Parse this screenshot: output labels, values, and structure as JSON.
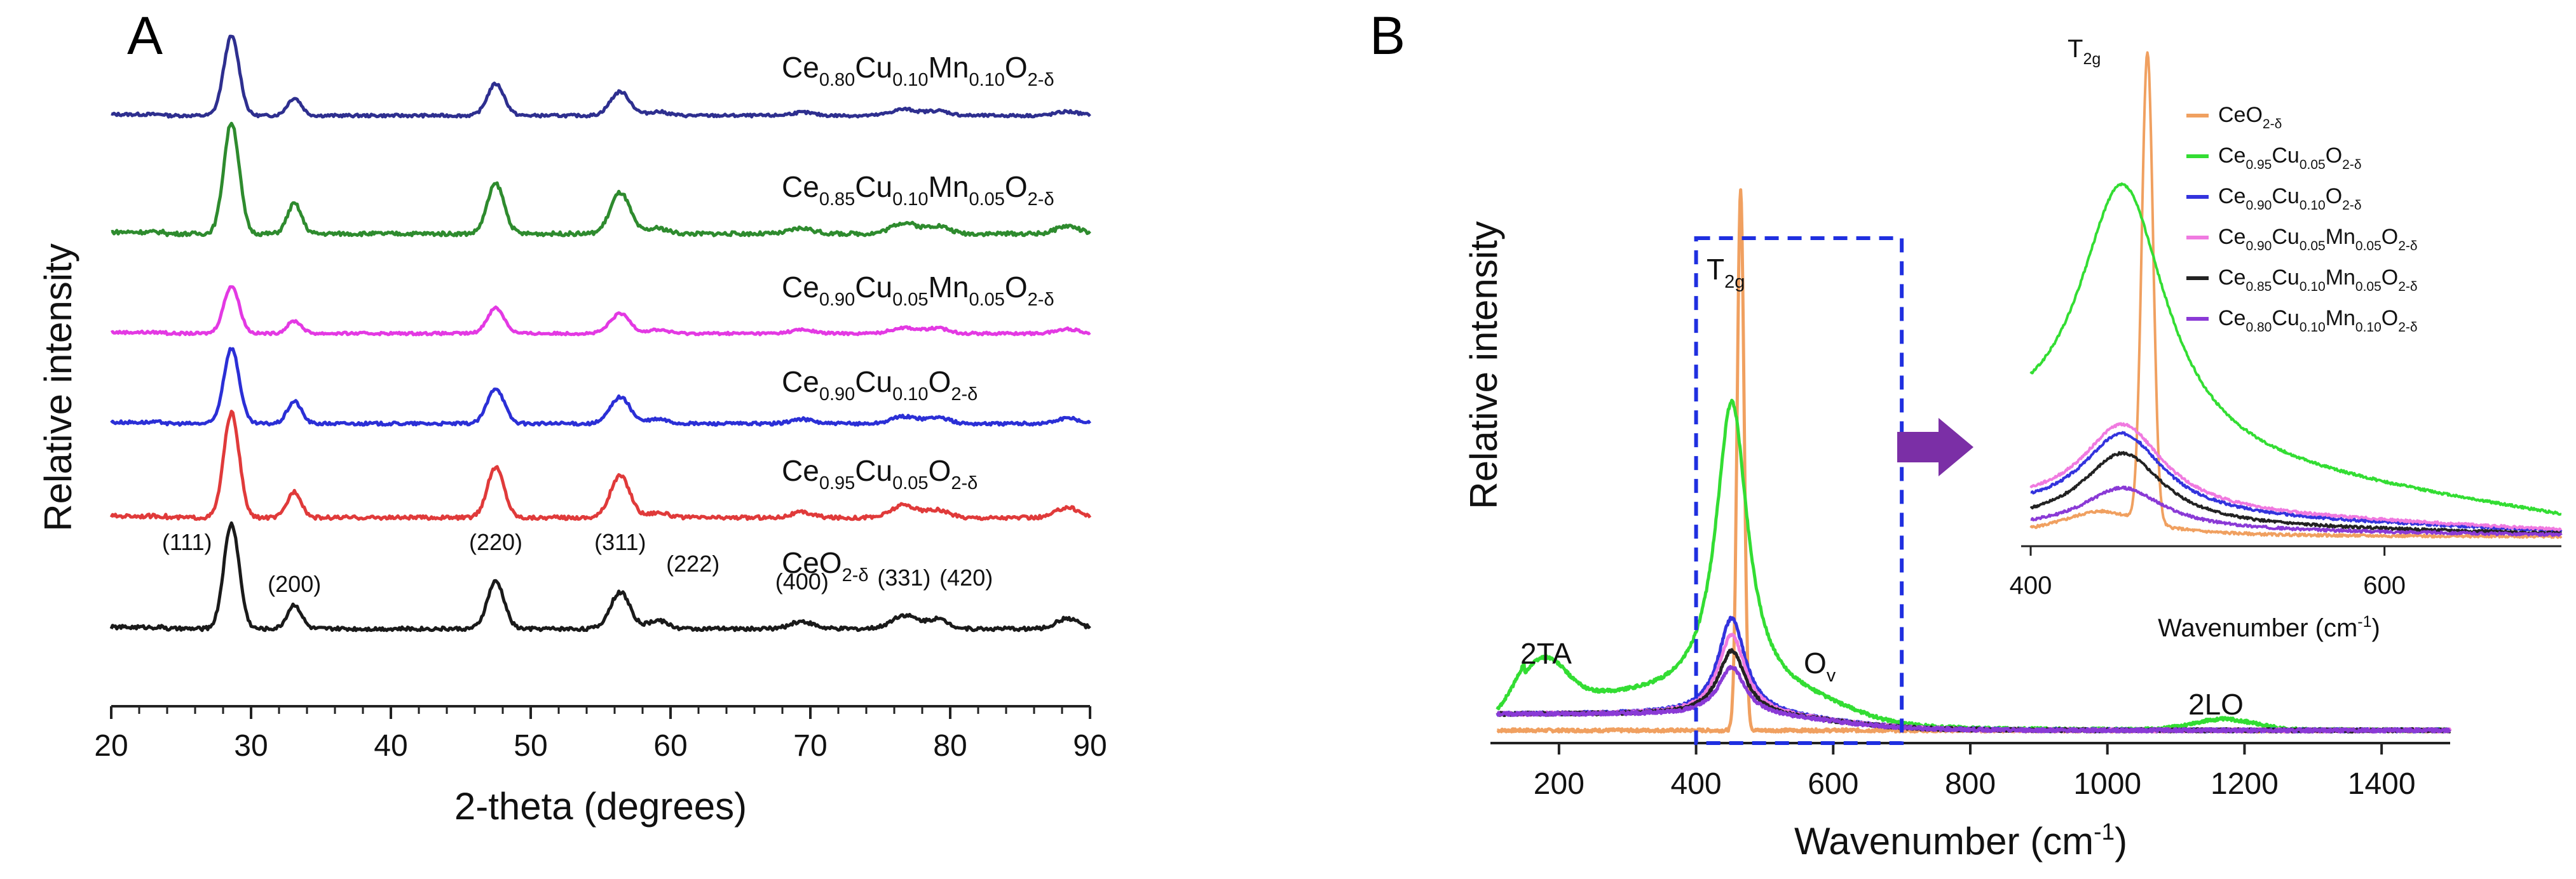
{
  "chart_data": [
    {
      "panel": "A",
      "type": "line",
      "xlabel": "2-theta (degrees)",
      "ylabel": "Relative intensity",
      "xlim": [
        20,
        90
      ],
      "xticks": [
        "20",
        "30",
        "40",
        "50",
        "60",
        "70",
        "80",
        "90"
      ],
      "peaks_2theta": [
        28.6,
        33.1,
        47.5,
        56.4,
        59.1,
        69.4,
        76.7,
        79.1,
        88.4
      ],
      "reflections": [
        {
          "label": "(111)",
          "x": 28.6
        },
        {
          "label": "(200)",
          "x": 33.1
        },
        {
          "label": "(220)",
          "x": 47.5
        },
        {
          "label": "(311)",
          "x": 56.4
        },
        {
          "label": "(222)",
          "x": 59.1
        },
        {
          "label": "(400)",
          "x": 69.4
        },
        {
          "label": "(331)",
          "x": 76.7
        },
        {
          "label": "(420)",
          "x": 79.1
        }
      ],
      "series": [
        {
          "key": "cemn10",
          "color": "#2e2f8f",
          "parts": [
            [
              "Ce",
              ""
            ],
            [
              "0.80",
              "sub"
            ],
            [
              "Cu",
              ""
            ],
            [
              "0.10",
              "sub"
            ],
            [
              "Mn",
              ""
            ],
            [
              "0.10",
              "sub"
            ],
            [
              "O",
              ""
            ],
            [
              "2-δ",
              "sub"
            ]
          ],
          "intensities": [
            1.0,
            0.22,
            0.4,
            0.3,
            0.05,
            0.04,
            0.08,
            0.06,
            0.05
          ]
        },
        {
          "key": "cemn05b",
          "color": "#2e8b2e",
          "parts": [
            [
              "Ce",
              ""
            ],
            [
              "0.85",
              "sub"
            ],
            [
              "Cu",
              ""
            ],
            [
              "0.10",
              "sub"
            ],
            [
              "Mn",
              ""
            ],
            [
              "0.05",
              "sub"
            ],
            [
              "O",
              ""
            ],
            [
              "2-δ",
              "sub"
            ]
          ],
          "intensities": [
            1.0,
            0.27,
            0.45,
            0.37,
            0.05,
            0.05,
            0.1,
            0.07,
            0.07
          ]
        },
        {
          "key": "cemn05a",
          "color": "#e339e3",
          "parts": [
            [
              "Ce",
              ""
            ],
            [
              "0.90",
              "sub"
            ],
            [
              "Cu",
              ""
            ],
            [
              "0.05",
              "sub"
            ],
            [
              "Mn",
              ""
            ],
            [
              "0.05",
              "sub"
            ],
            [
              "O",
              ""
            ],
            [
              "2-δ",
              "sub"
            ]
          ],
          "intensities": [
            0.65,
            0.17,
            0.35,
            0.27,
            0.05,
            0.05,
            0.08,
            0.07,
            0.06
          ]
        },
        {
          "key": "cu10",
          "color": "#2b2fd6",
          "parts": [
            [
              "Ce",
              ""
            ],
            [
              "0.90",
              "sub"
            ],
            [
              "Cu",
              ""
            ],
            [
              "0.10",
              "sub"
            ],
            [
              "O",
              ""
            ],
            [
              "2-δ",
              "sub"
            ]
          ],
          "intensities": [
            0.85,
            0.25,
            0.4,
            0.3,
            0.05,
            0.05,
            0.08,
            0.07,
            0.06
          ]
        },
        {
          "key": "cu05",
          "color": "#e03a3a",
          "parts": [
            [
              "Ce",
              ""
            ],
            [
              "0.95",
              "sub"
            ],
            [
              "Cu",
              ""
            ],
            [
              "0.05",
              "sub"
            ],
            [
              "O",
              ""
            ],
            [
              "2-δ",
              "sub"
            ]
          ],
          "intensities": [
            1.0,
            0.25,
            0.48,
            0.4,
            0.05,
            0.05,
            0.12,
            0.07,
            0.1
          ]
        },
        {
          "key": "ceo2",
          "color": "#1a1a1a",
          "parts": [
            [
              "CeO",
              ""
            ],
            [
              "2-δ",
              "sub"
            ]
          ],
          "intensities": [
            1.0,
            0.23,
            0.45,
            0.35,
            0.08,
            0.07,
            0.13,
            0.09,
            0.1
          ]
        }
      ]
    },
    {
      "panel": "B",
      "type": "line",
      "xlabel_parts": [
        [
          "Wavenumber (cm",
          ""
        ],
        [
          "-1",
          "sup"
        ],
        [
          ")",
          ""
        ]
      ],
      "ylabel": "Relative intensity",
      "xlim": [
        100,
        1500
      ],
      "xticks": [
        "200",
        "400",
        "600",
        "800",
        "1000",
        "1200",
        "1400"
      ],
      "annotations": {
        "t2g_main": [
          [
            "T",
            ""
          ],
          [
            "2g",
            "sub"
          ]
        ],
        "t2g_inset": [
          [
            "T",
            ""
          ],
          [
            "2g",
            "sub"
          ]
        ],
        "ta": "2TA",
        "ov": [
          [
            "O",
            ""
          ],
          [
            "v",
            "sub"
          ]
        ],
        "lo": "2LO"
      },
      "zoom_box": {
        "x_range": [
          400,
          700
        ]
      },
      "inset": {
        "xlim": [
          400,
          700
        ],
        "xticks": [
          "400",
          "600"
        ],
        "xlabel_parts": [
          [
            "Wavenumber (cm",
            ""
          ],
          [
            "-1",
            "sup"
          ],
          [
            ")",
            ""
          ]
        ]
      },
      "series": [
        {
          "key": "ceo2",
          "color": "#f0a060",
          "parts": [
            [
              "CeO",
              ""
            ],
            [
              "2-δ",
              "sub"
            ]
          ],
          "peak_x": 465,
          "peak": 1.0,
          "width": 5
        },
        {
          "key": "cu05",
          "color": "#33dd33",
          "parts": [
            [
              "Ce",
              ""
            ],
            [
              "0.95",
              "sub"
            ],
            [
              "Cu",
              ""
            ],
            [
              "0.05",
              "sub"
            ],
            [
              "O",
              ""
            ],
            [
              "2-δ",
              "sub"
            ]
          ],
          "peak_x": 452,
          "peak": 0.55,
          "width": 28
        },
        {
          "key": "cu10",
          "color": "#3333dd",
          "parts": [
            [
              "Ce",
              ""
            ],
            [
              "0.90",
              "sub"
            ],
            [
              "Cu",
              ""
            ],
            [
              "0.10",
              "sub"
            ],
            [
              "O",
              ""
            ],
            [
              "2-δ",
              "sub"
            ]
          ],
          "peak_x": 452,
          "peak": 0.18,
          "width": 24
        },
        {
          "key": "cemn05a",
          "color": "#f07ae0",
          "parts": [
            [
              "Ce",
              ""
            ],
            [
              "0.90",
              "sub"
            ],
            [
              "Cu",
              ""
            ],
            [
              "0.05",
              "sub"
            ],
            [
              "Mn",
              ""
            ],
            [
              "0.05",
              "sub"
            ],
            [
              "O",
              ""
            ],
            [
              "2-δ",
              "sub"
            ]
          ],
          "peak_x": 452,
          "peak": 0.15,
          "width": 24
        },
        {
          "key": "cemn05b",
          "color": "#222222",
          "parts": [
            [
              "Ce",
              ""
            ],
            [
              "0.85",
              "sub"
            ],
            [
              "Cu",
              ""
            ],
            [
              "0.10",
              "sub"
            ],
            [
              "Mn",
              ""
            ],
            [
              "0.05",
              "sub"
            ],
            [
              "O",
              ""
            ],
            [
              "2-δ",
              "sub"
            ]
          ],
          "peak_x": 452,
          "peak": 0.12,
          "width": 24
        },
        {
          "key": "cemn10",
          "color": "#8a3ad6",
          "parts": [
            [
              "Ce",
              ""
            ],
            [
              "0.80",
              "sub"
            ],
            [
              "Cu",
              ""
            ],
            [
              "0.10",
              "sub"
            ],
            [
              "Mn",
              ""
            ],
            [
              "0.10",
              "sub"
            ],
            [
              "O",
              ""
            ],
            [
              "2-δ",
              "sub"
            ]
          ],
          "peak_x": 452,
          "peak": 0.09,
          "width": 24
        }
      ]
    }
  ],
  "colors": {
    "arrow": "#7b2fa6",
    "zoom_box": "#1f2fe0",
    "axis": "#222222"
  }
}
